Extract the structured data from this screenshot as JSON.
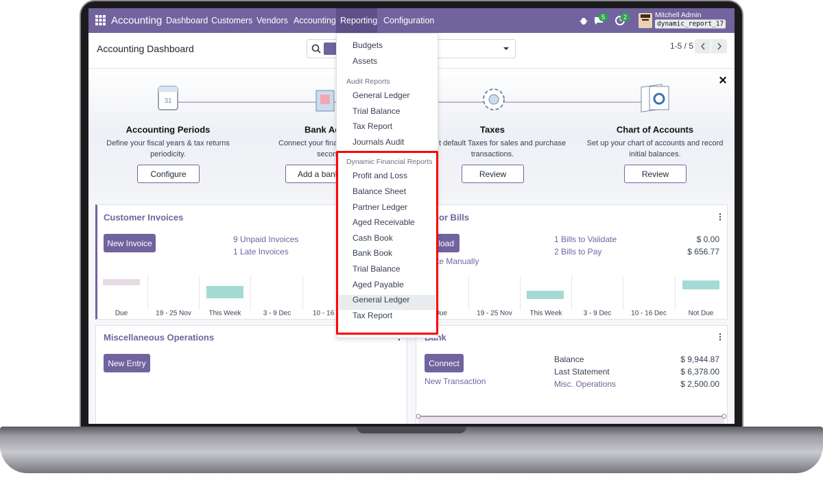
{
  "navbar": {
    "app": "Accounting",
    "menu": [
      "Dashboard",
      "Customers",
      "Vendors",
      "Accounting",
      "Reporting",
      "Configuration"
    ],
    "chat_count": "5",
    "activity_count": "2",
    "user": "Mitchell Admin",
    "database": "dynamic_report_17"
  },
  "control_panel": {
    "title": "Accounting Dashboard",
    "pager": "1-5 / 5"
  },
  "onboarding": {
    "close": "×",
    "steps": [
      {
        "title": "Accounting Periods",
        "lines": [
          "Define your fiscal years & tax returns",
          "periodicity."
        ],
        "button": "Configure"
      },
      {
        "title": "Bank Ac",
        "lines": [
          "Connect your finan",
          "secon"
        ],
        "button": "Add a bank"
      },
      {
        "title": "Taxes",
        "lines": [
          "t default Taxes for sales and purchase",
          "transactions."
        ],
        "button": "Review"
      },
      {
        "title": "Chart of Accounts",
        "lines": [
          "Set up your chart of accounts and record",
          "initial balances."
        ],
        "button": "Review"
      }
    ]
  },
  "journals": [
    {
      "title": "Customer Invoices",
      "button": "New Invoice",
      "links": [
        "9 Unpaid Invoices",
        "1 Late Invoices"
      ],
      "graph_labels": [
        "Due",
        "19 - 25 Nov",
        "This Week",
        "3 - 9 Dec",
        "10 - 16"
      ]
    },
    {
      "title": "dor Bills",
      "button": "load",
      "secondary_link": "te Manually",
      "rows": [
        {
          "label": "1 Bills to Validate",
          "amount": "$ 0.00"
        },
        {
          "label": "2 Bills to Pay",
          "amount": "$ 656.77"
        }
      ],
      "graph_labels": [
        "Due",
        "19 - 25 Nov",
        "This Week",
        "3 - 9 Dec",
        "10 - 16 Dec",
        "Not Due"
      ]
    },
    {
      "title": "Miscellaneous Operations",
      "button": "New Entry"
    },
    {
      "title": "Bank",
      "button": "Connect",
      "secondary_link": "New Transaction",
      "rows": [
        {
          "label": "Balance",
          "amount": "$ 9,944.87"
        },
        {
          "label": "Last Statement",
          "amount": "$ 6,378.00"
        },
        {
          "label": "Misc. Operations",
          "amount": "$ 2,500.00"
        }
      ]
    }
  ],
  "reporting_menu": {
    "items": [
      "Budgets",
      "Assets"
    ],
    "sections": [
      {
        "header": "Audit Reports",
        "items": [
          "General Ledger",
          "Trial Balance",
          "Tax Report",
          "Journals Audit"
        ]
      },
      {
        "header": "Dynamic Financial Reports",
        "items": [
          "Profit and Loss",
          "Balance Sheet",
          "Partner Ledger",
          "Aged Receivable",
          "Cash Book",
          "Bank Book",
          "Trial Balance",
          "Aged Payable",
          "General Ledger",
          "Tax Report"
        ]
      }
    ]
  }
}
